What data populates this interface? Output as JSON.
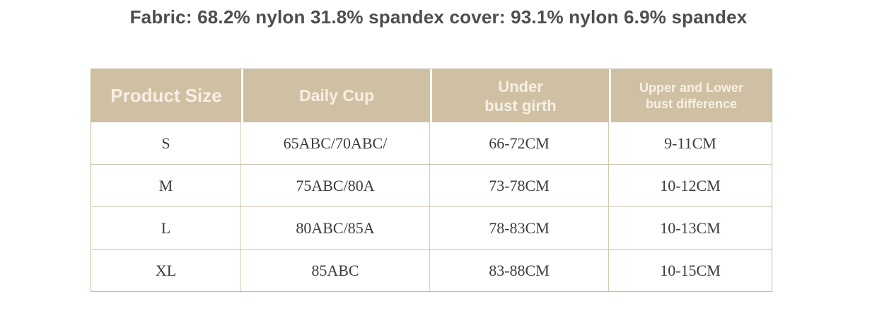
{
  "title": {
    "text": "Fabric: 68.2% nylon 31.8% spandex cover: 93.1% nylon 6.9% spandex"
  },
  "colors": {
    "title_text": "#4e4e4e",
    "header_background": "#cfc0a4",
    "header_text": "#f6efe3",
    "outer_border": "#c4b492",
    "inner_border": "#d6cbb0",
    "body_text": "#3c3c3c",
    "page_background": "#ffffff"
  },
  "table": {
    "columns": [
      {
        "id": "size",
        "label": "Product Size",
        "lines": [
          "Product Size"
        ]
      },
      {
        "id": "daily_cup",
        "label": "Daily Cup",
        "lines": [
          "Daily Cup"
        ]
      },
      {
        "id": "under_bust",
        "label": "Under bust girth",
        "lines": [
          "Under",
          "bust girth"
        ]
      },
      {
        "id": "difference",
        "label": "Upper and Lower bust difference",
        "lines": [
          "Upper and Lower",
          "bust difference"
        ]
      }
    ],
    "rows": [
      {
        "size": "S",
        "daily_cup": "65ABC/70ABC/",
        "under_bust": "66-72CM",
        "difference": "9-11CM"
      },
      {
        "size": "M",
        "daily_cup": "75ABC/80A",
        "under_bust": "73-78CM",
        "difference": "10-12CM"
      },
      {
        "size": "L",
        "daily_cup": "80ABC/85A",
        "under_bust": "78-83CM",
        "difference": "10-13CM"
      },
      {
        "size": "XL",
        "daily_cup": "85ABC",
        "under_bust": "83-88CM",
        "difference": "10-15CM"
      }
    ]
  },
  "chart_data": {
    "type": "table",
    "title": "Fabric: 68.2% nylon 31.8% spandex cover: 93.1% nylon 6.9% spandex",
    "columns": [
      "Product Size",
      "Daily Cup",
      "Under bust girth",
      "Upper and Lower bust difference"
    ],
    "rows": [
      [
        "S",
        "65ABC/70ABC/",
        "66-72CM",
        "9-11CM"
      ],
      [
        "M",
        "75ABC/80A",
        "73-78CM",
        "10-12CM"
      ],
      [
        "L",
        "80ABC/85A",
        "78-83CM",
        "10-13CM"
      ],
      [
        "XL",
        "85ABC",
        "83-88CM",
        "10-15CM"
      ]
    ]
  }
}
